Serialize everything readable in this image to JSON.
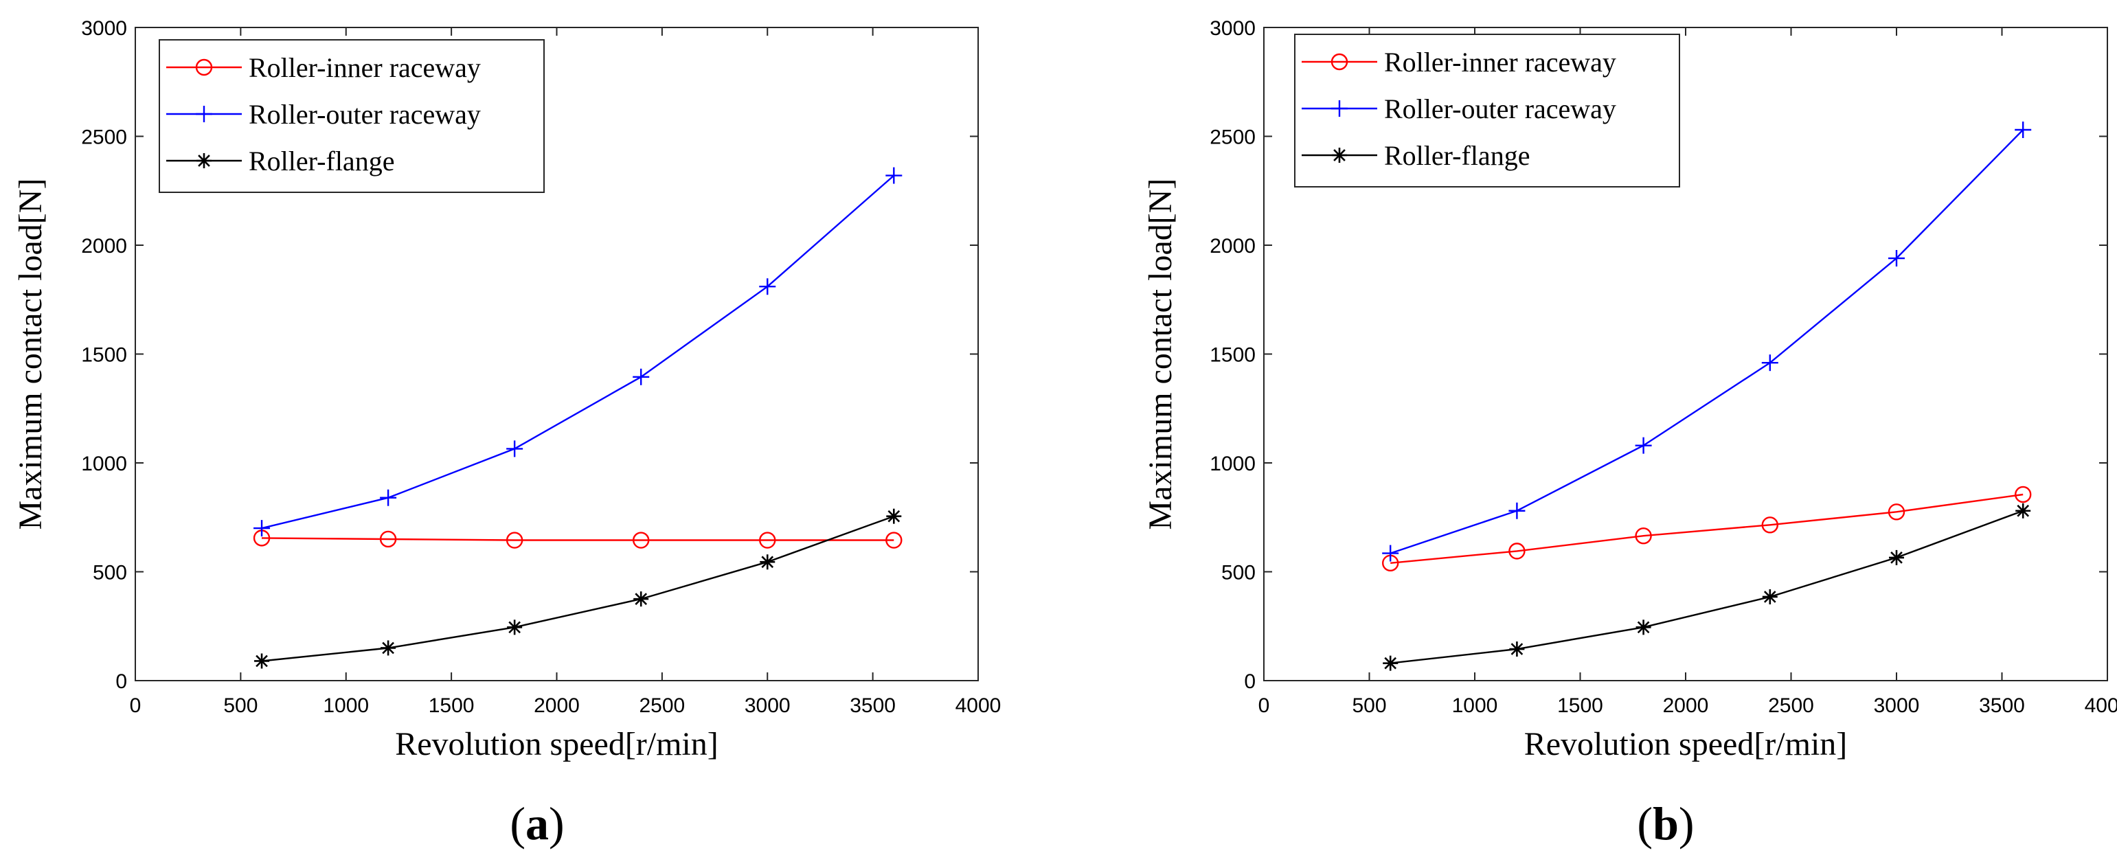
{
  "chart_data": [
    {
      "type": "line",
      "panel_label": "(a)",
      "panel_letter": "a",
      "xlabel": "Revolution speed[r/min]",
      "ylabel": "Maximum contact load[N]",
      "xlim": [
        0,
        4000
      ],
      "ylim": [
        0,
        3000
      ],
      "xticks": [
        0,
        500,
        1000,
        1500,
        2000,
        2500,
        3000,
        3500,
        4000
      ],
      "yticks": [
        0,
        500,
        1000,
        1500,
        2000,
        2500,
        3000
      ],
      "grid": false,
      "legend_position": "top-left",
      "x": [
        600,
        1200,
        1800,
        2400,
        3000,
        3600
      ],
      "series": [
        {
          "name": "Roller-inner raceway",
          "color": "#ff0000",
          "marker": "circle",
          "values": [
            655,
            650,
            645,
            645,
            645,
            645
          ]
        },
        {
          "name": "Roller-outer raceway",
          "color": "#0000ff",
          "marker": "plus",
          "values": [
            700,
            840,
            1065,
            1395,
            1810,
            2320
          ]
        },
        {
          "name": "Roller-flange",
          "color": "#000000",
          "marker": "asterisk",
          "values": [
            90,
            150,
            245,
            375,
            545,
            755
          ]
        }
      ]
    },
    {
      "type": "line",
      "panel_label": "(b)",
      "panel_letter": "b",
      "xlabel": "Revolution speed[r/min]",
      "ylabel": "Maximum contact load[N]",
      "xlim": [
        0,
        4000
      ],
      "ylim": [
        0,
        3000
      ],
      "xticks": [
        0,
        500,
        1000,
        1500,
        2000,
        2500,
        3000,
        3500,
        4000
      ],
      "yticks": [
        0,
        500,
        1000,
        1500,
        2000,
        2500,
        3000
      ],
      "grid": false,
      "legend_position": "top-left",
      "x": [
        600,
        1200,
        1800,
        2400,
        3000,
        3600
      ],
      "series": [
        {
          "name": "Roller-inner raceway",
          "color": "#ff0000",
          "marker": "circle",
          "values": [
            540,
            595,
            665,
            715,
            775,
            855
          ]
        },
        {
          "name": "Roller-outer raceway",
          "color": "#0000ff",
          "marker": "plus",
          "values": [
            585,
            780,
            1080,
            1460,
            1940,
            2530
          ]
        },
        {
          "name": "Roller-flange",
          "color": "#000000",
          "marker": "asterisk",
          "values": [
            80,
            145,
            245,
            385,
            565,
            780
          ]
        }
      ]
    }
  ]
}
